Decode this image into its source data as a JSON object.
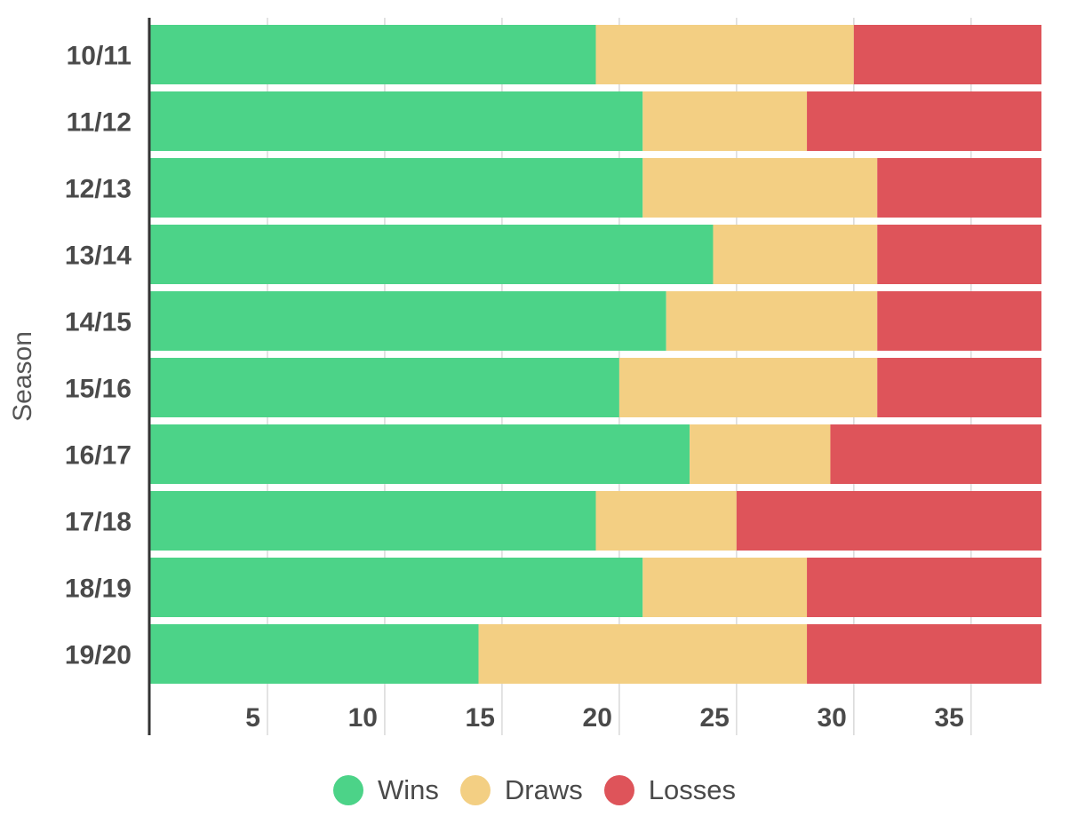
{
  "chart_data": {
    "type": "bar",
    "orientation": "horizontal",
    "stacked": true,
    "categories": [
      "10/11",
      "11/12",
      "12/13",
      "13/14",
      "14/15",
      "15/16",
      "16/17",
      "17/18",
      "18/19",
      "19/20"
    ],
    "series": [
      {
        "name": "Wins",
        "color": "#4cd388",
        "values": [
          19,
          21,
          21,
          24,
          22,
          20,
          23,
          19,
          21,
          14
        ]
      },
      {
        "name": "Draws",
        "color": "#f3cf83",
        "values": [
          11,
          7,
          10,
          7,
          9,
          11,
          6,
          6,
          7,
          14
        ]
      },
      {
        "name": "Losses",
        "color": "#de545a",
        "values": [
          8,
          10,
          7,
          7,
          7,
          7,
          9,
          13,
          10,
          10
        ]
      }
    ],
    "xticks": [
      5,
      10,
      15,
      20,
      25,
      30,
      35
    ],
    "xlim": [
      0,
      38
    ],
    "ylabel": "Season",
    "xlabel": "",
    "grid": true,
    "legend_position": "bottom-center"
  }
}
